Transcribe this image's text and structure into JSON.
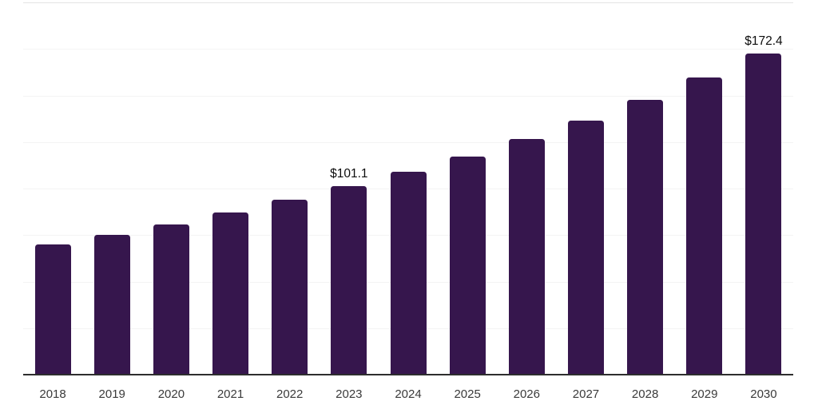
{
  "chart_data": {
    "type": "bar",
    "title": "",
    "categories": [
      "2018",
      "2019",
      "2020",
      "2021",
      "2022",
      "2023",
      "2024",
      "2025",
      "2026",
      "2027",
      "2028",
      "2029",
      "2030"
    ],
    "values": [
      70.0,
      75.3,
      80.9,
      87.2,
      94.0,
      101.1,
      108.9,
      117.2,
      126.5,
      136.6,
      147.5,
      159.6,
      172.4
    ],
    "data_labels": {
      "2023": "$101.1",
      "2030": "$172.4"
    },
    "ylim": [
      0,
      200
    ],
    "gridline_interval": 25,
    "grid": true,
    "legend": "none",
    "xlabel": "",
    "ylabel": "",
    "colors": {
      "bar": "#36164d",
      "axis_line": "#2e2e2e",
      "gridline": "#f4f4f4",
      "gridline_top": "#e3e3e3",
      "value_label": "#0d0d0d",
      "tick_label": "#3a3a3a",
      "background": "#ffffff"
    }
  }
}
